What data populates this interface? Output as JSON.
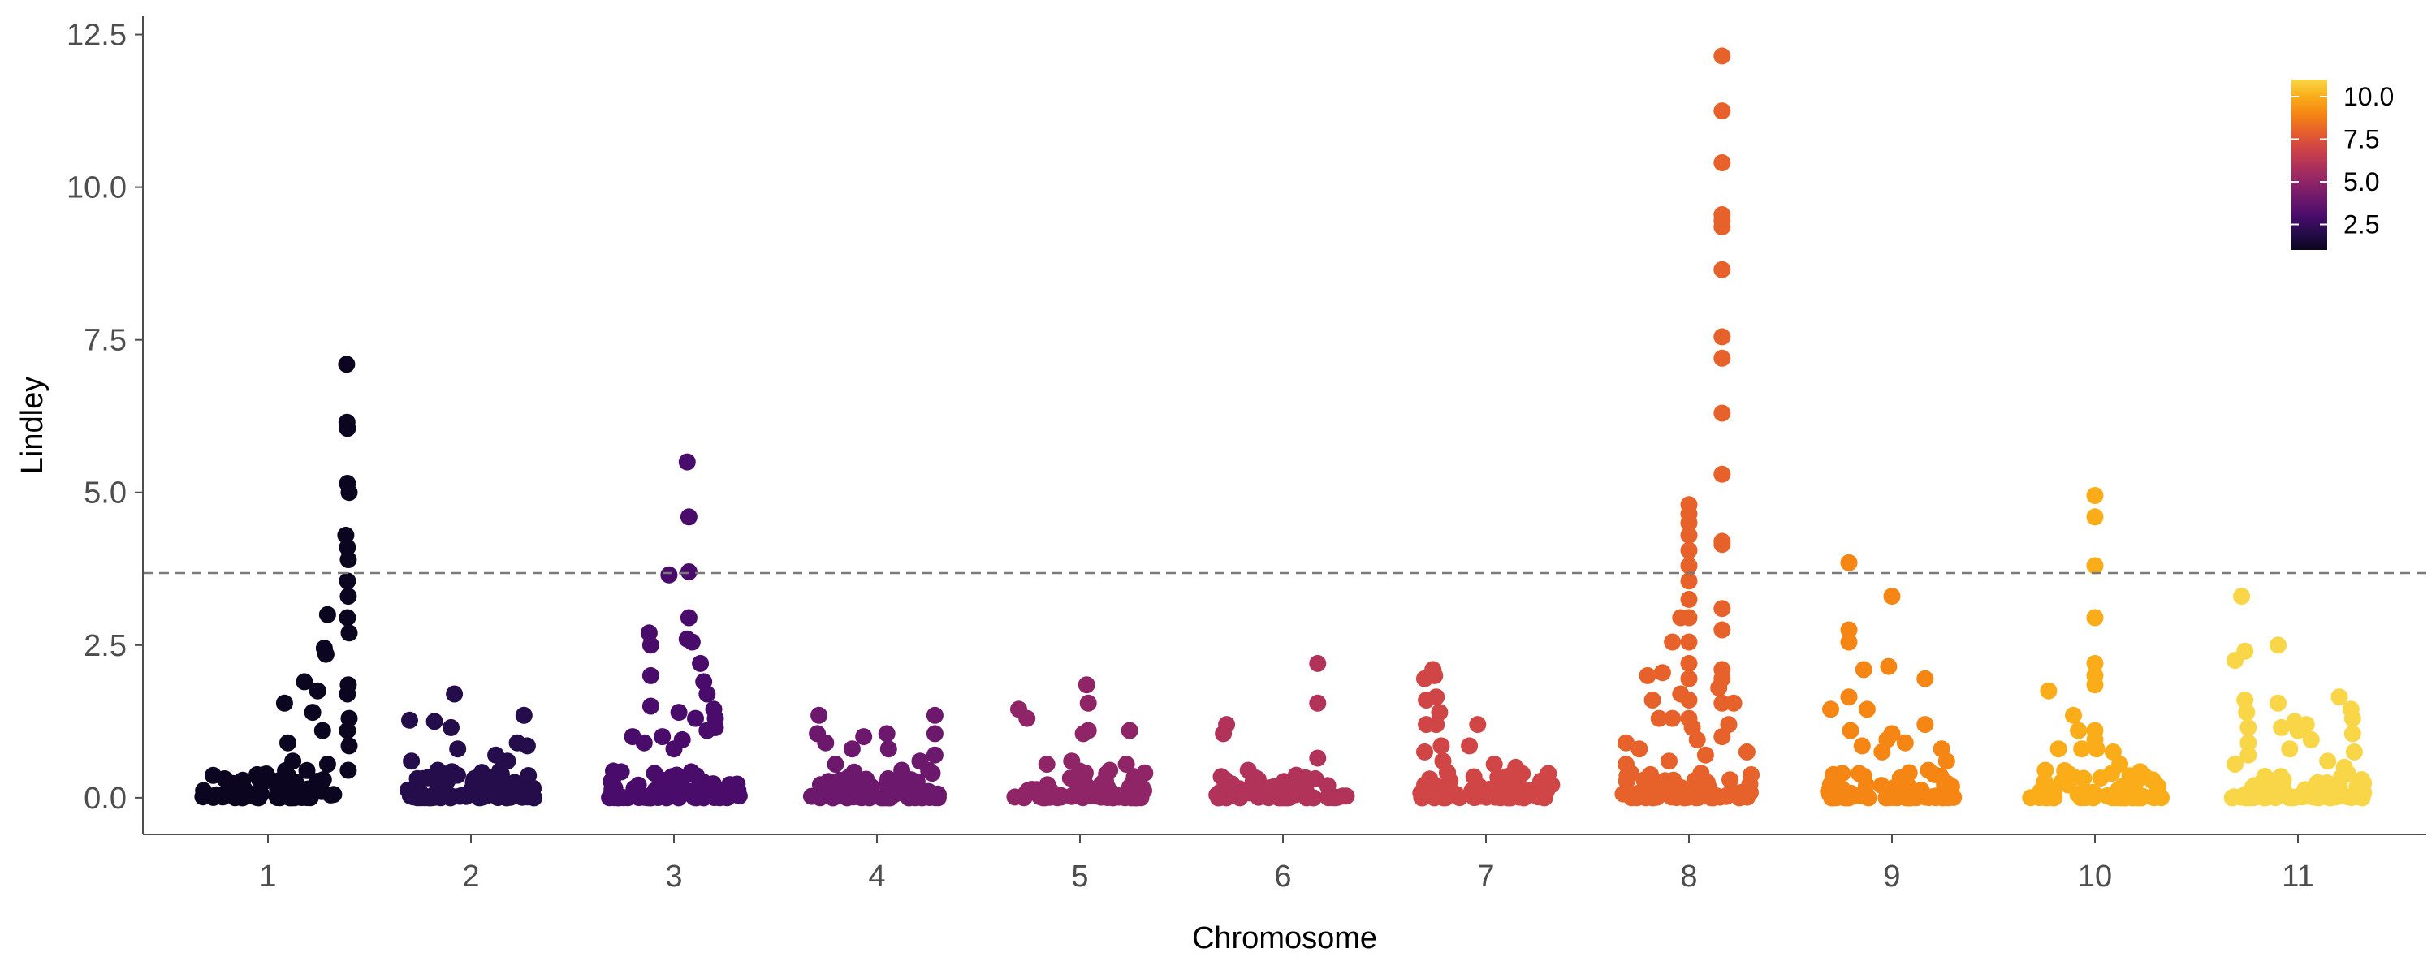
{
  "chart_data": {
    "type": "scatter",
    "title": "",
    "xlabel": "Chromosome",
    "ylabel": "Lindley",
    "categories": [
      "1",
      "2",
      "3",
      "4",
      "5",
      "6",
      "7",
      "8",
      "9",
      "10",
      "11"
    ],
    "ylim": [
      -0.6,
      12.8
    ],
    "yticks": [
      0.0,
      2.5,
      5.0,
      7.5,
      10.0,
      12.5
    ],
    "ytick_labels": [
      "0.0",
      "2.5",
      "5.0",
      "7.5",
      "10.0",
      "12.5"
    ],
    "threshold": 3.68,
    "threshold_style": "dashed",
    "grid": false,
    "legend": {
      "type": "colorbar",
      "position": "top-right",
      "range": [
        1,
        11
      ],
      "ticks": [
        2.5,
        5.0,
        7.5,
        10.0
      ],
      "tick_labels": [
        "2.5",
        "5.0",
        "7.5",
        "10.0"
      ]
    },
    "palette": [
      "#000004",
      "#1b0c41",
      "#4a0c6b",
      "#781c6d",
      "#a52c60",
      "#cf4446",
      "#ed6925",
      "#fb9b06",
      "#f7d13d",
      "#fcffa4"
    ],
    "series": [
      {
        "chromosome": 1,
        "color_value": 1,
        "points": [
          [
            0.1,
            1.55
          ],
          [
            0.12,
            0.9
          ],
          [
            0.15,
            0.6
          ],
          [
            0.22,
            1.9
          ],
          [
            0.27,
            1.4
          ],
          [
            0.3,
            1.75
          ],
          [
            0.33,
            1.1
          ],
          [
            0.34,
            2.45
          ],
          [
            0.35,
            2.35
          ],
          [
            0.36,
            3.0
          ],
          [
            0.36,
            0.55
          ],
          [
            0.47,
            4.3
          ],
          [
            0.475,
            7.1
          ],
          [
            0.477,
            6.15
          ],
          [
            0.48,
            6.05
          ],
          [
            0.48,
            5.15
          ],
          [
            0.49,
            5.0
          ],
          [
            0.48,
            4.1
          ],
          [
            0.485,
            3.9
          ],
          [
            0.48,
            3.55
          ],
          [
            0.485,
            3.3
          ],
          [
            0.48,
            2.95
          ],
          [
            0.49,
            2.7
          ],
          [
            0.485,
            1.85
          ],
          [
            0.48,
            1.7
          ],
          [
            0.49,
            1.3
          ],
          [
            0.48,
            1.1
          ],
          [
            0.49,
            0.85
          ],
          [
            0.485,
            0.45
          ]
        ]
      },
      {
        "chromosome": 2,
        "color_value": 2,
        "points": [
          [
            -0.37,
            1.27
          ],
          [
            -0.36,
            0.6
          ],
          [
            -0.22,
            1.25
          ],
          [
            -0.1,
            1.7
          ],
          [
            -0.12,
            1.15
          ],
          [
            -0.08,
            0.8
          ],
          [
            0.15,
            0.7
          ],
          [
            0.22,
            0.6
          ],
          [
            0.28,
            0.9
          ],
          [
            0.32,
            1.35
          ],
          [
            0.34,
            0.85
          ],
          [
            -0.2,
            0.45
          ],
          [
            0.05,
            0.35
          ]
        ]
      },
      {
        "chromosome": 3,
        "color_value": 3,
        "points": [
          [
            -0.37,
            0.3
          ],
          [
            -0.25,
            1.0
          ],
          [
            -0.15,
            2.7
          ],
          [
            -0.14,
            2.5
          ],
          [
            -0.14,
            2.0
          ],
          [
            -0.14,
            1.5
          ],
          [
            -0.03,
            3.65
          ],
          [
            0.08,
            5.5
          ],
          [
            0.09,
            4.6
          ],
          [
            0.09,
            3.7
          ],
          [
            0.09,
            2.95
          ],
          [
            0.08,
            2.6
          ],
          [
            0.11,
            2.55
          ],
          [
            0.16,
            2.2
          ],
          [
            0.18,
            1.9
          ],
          [
            0.2,
            1.7
          ],
          [
            0.24,
            1.45
          ],
          [
            0.25,
            1.3
          ],
          [
            0.25,
            1.15
          ],
          [
            0.03,
            1.4
          ],
          [
            -0.07,
            1.0
          ],
          [
            0.13,
            1.3
          ],
          [
            0.2,
            1.1
          ],
          [
            -0.18,
            0.9
          ],
          [
            0.0,
            0.8
          ],
          [
            0.05,
            0.95
          ]
        ]
      },
      {
        "chromosome": 4,
        "color_value": 4,
        "points": [
          [
            -0.35,
            1.35
          ],
          [
            -0.36,
            1.05
          ],
          [
            -0.31,
            0.9
          ],
          [
            -0.15,
            0.8
          ],
          [
            -0.08,
            1.0
          ],
          [
            0.06,
            1.05
          ],
          [
            0.07,
            0.8
          ],
          [
            0.26,
            0.6
          ],
          [
            0.35,
            1.35
          ],
          [
            0.35,
            1.05
          ],
          [
            0.35,
            0.7
          ],
          [
            -0.25,
            0.55
          ],
          [
            0.15,
            0.45
          ]
        ]
      },
      {
        "chromosome": 5,
        "color_value": 5,
        "points": [
          [
            -0.37,
            1.45
          ],
          [
            -0.32,
            1.3
          ],
          [
            -0.2,
            0.55
          ],
          [
            -0.05,
            0.6
          ],
          [
            0.02,
            1.05
          ],
          [
            0.04,
            1.85
          ],
          [
            0.05,
            1.55
          ],
          [
            0.05,
            1.1
          ],
          [
            0.18,
            0.45
          ],
          [
            0.3,
            1.1
          ],
          [
            0.28,
            0.55
          ]
        ]
      },
      {
        "chromosome": 6,
        "color_value": 6,
        "points": [
          [
            -0.36,
            1.05
          ],
          [
            -0.34,
            1.2
          ],
          [
            -0.21,
            0.45
          ],
          [
            -0.15,
            0.3
          ],
          [
            0.21,
            2.2
          ],
          [
            0.21,
            1.55
          ],
          [
            0.21,
            0.65
          ],
          [
            0.27,
            0.2
          ]
        ]
      },
      {
        "chromosome": 7,
        "color_value": 7,
        "points": [
          [
            -0.37,
            1.95
          ],
          [
            -0.36,
            1.6
          ],
          [
            -0.36,
            1.2
          ],
          [
            -0.37,
            0.75
          ],
          [
            -0.32,
            2.1
          ],
          [
            -0.31,
            2.0
          ],
          [
            -0.3,
            1.65
          ],
          [
            -0.28,
            1.4
          ],
          [
            -0.27,
            0.85
          ],
          [
            -0.26,
            0.6
          ],
          [
            -0.3,
            1.2
          ],
          [
            -0.1,
            0.85
          ],
          [
            -0.05,
            1.2
          ],
          [
            0.05,
            0.55
          ],
          [
            0.18,
            0.5
          ],
          [
            0.2,
            0.4
          ]
        ]
      },
      {
        "chromosome": 8,
        "color_value": 8,
        "points": [
          [
            -0.38,
            0.9
          ],
          [
            -0.38,
            0.55
          ],
          [
            -0.35,
            0.4
          ],
          [
            -0.3,
            0.8
          ],
          [
            -0.25,
            2.0
          ],
          [
            -0.22,
            1.6
          ],
          [
            -0.18,
            1.3
          ],
          [
            -0.16,
            2.05
          ],
          [
            -0.1,
            2.55
          ],
          [
            -0.1,
            1.3
          ],
          [
            -0.05,
            2.95
          ],
          [
            -0.05,
            1.7
          ],
          [
            0.0,
            4.8
          ],
          [
            0.0,
            4.65
          ],
          [
            0.0,
            4.5
          ],
          [
            0.0,
            4.3
          ],
          [
            0.0,
            4.05
          ],
          [
            0.0,
            3.8
          ],
          [
            0.0,
            3.55
          ],
          [
            0.0,
            3.25
          ],
          [
            0.0,
            2.95
          ],
          [
            0.0,
            2.55
          ],
          [
            0.0,
            2.2
          ],
          [
            0.0,
            1.95
          ],
          [
            0.0,
            1.6
          ],
          [
            0.0,
            1.3
          ],
          [
            0.02,
            1.15
          ],
          [
            0.05,
            0.95
          ],
          [
            0.2,
            12.15
          ],
          [
            0.2,
            11.25
          ],
          [
            0.2,
            10.4
          ],
          [
            0.2,
            9.55
          ],
          [
            0.2,
            9.45
          ],
          [
            0.2,
            9.35
          ],
          [
            0.2,
            8.65
          ],
          [
            0.2,
            7.55
          ],
          [
            0.2,
            7.2
          ],
          [
            0.2,
            6.3
          ],
          [
            0.2,
            5.3
          ],
          [
            0.2,
            4.2
          ],
          [
            0.2,
            4.15
          ],
          [
            0.2,
            3.1
          ],
          [
            0.2,
            2.75
          ],
          [
            0.2,
            2.1
          ],
          [
            0.2,
            1.95
          ],
          [
            0.2,
            1.55
          ],
          [
            0.2,
            1.0
          ],
          [
            0.18,
            1.8
          ],
          [
            0.24,
            1.2
          ],
          [
            0.27,
            1.55
          ],
          [
            0.35,
            0.75
          ],
          [
            0.1,
            0.7
          ],
          [
            -0.12,
            0.6
          ]
        ]
      },
      {
        "chromosome": 9,
        "color_value": 9,
        "points": [
          [
            -0.37,
            1.45
          ],
          [
            -0.3,
            0.4
          ],
          [
            -0.26,
            3.85
          ],
          [
            -0.26,
            2.75
          ],
          [
            -0.26,
            2.55
          ],
          [
            -0.26,
            1.65
          ],
          [
            -0.25,
            1.1
          ],
          [
            -0.18,
            0.85
          ],
          [
            -0.17,
            2.1
          ],
          [
            -0.15,
            1.45
          ],
          [
            -0.06,
            0.75
          ],
          [
            -0.03,
            0.95
          ],
          [
            -0.02,
            2.15
          ],
          [
            0.0,
            3.3
          ],
          [
            0.0,
            1.05
          ],
          [
            0.08,
            0.9
          ],
          [
            0.2,
            1.95
          ],
          [
            0.2,
            1.2
          ],
          [
            0.22,
            0.45
          ],
          [
            0.3,
            0.8
          ],
          [
            0.33,
            0.6
          ]
        ]
      },
      {
        "chromosome": 10,
        "color_value": 10,
        "points": [
          [
            -0.3,
            0.45
          ],
          [
            -0.28,
            1.75
          ],
          [
            -0.22,
            0.8
          ],
          [
            -0.13,
            1.35
          ],
          [
            -0.1,
            1.1
          ],
          [
            -0.08,
            0.8
          ],
          [
            0.01,
            0.8
          ],
          [
            0.0,
            4.95
          ],
          [
            0.0,
            4.6
          ],
          [
            0.0,
            3.8
          ],
          [
            0.0,
            2.95
          ],
          [
            0.0,
            2.2
          ],
          [
            0.0,
            2.0
          ],
          [
            0.0,
            1.85
          ],
          [
            0.0,
            1.1
          ],
          [
            0.0,
            0.95
          ],
          [
            0.11,
            0.75
          ],
          [
            0.15,
            0.55
          ],
          [
            0.3,
            0.35
          ]
        ]
      },
      {
        "chromosome": 11,
        "color_value": 11,
        "points": [
          [
            -0.38,
            2.25
          ],
          [
            -0.38,
            0.55
          ],
          [
            -0.34,
            3.3
          ],
          [
            -0.32,
            2.4
          ],
          [
            -0.32,
            1.6
          ],
          [
            -0.31,
            1.4
          ],
          [
            -0.3,
            1.15
          ],
          [
            -0.3,
            0.9
          ],
          [
            -0.3,
            0.7
          ],
          [
            -0.2,
            0.35
          ],
          [
            -0.12,
            2.5
          ],
          [
            -0.12,
            1.55
          ],
          [
            -0.1,
            1.15
          ],
          [
            -0.05,
            0.8
          ],
          [
            -0.02,
            1.25
          ],
          [
            0.0,
            1.1
          ],
          [
            0.05,
            1.2
          ],
          [
            0.08,
            0.95
          ],
          [
            0.18,
            0.6
          ],
          [
            0.25,
            1.65
          ],
          [
            0.28,
            0.5
          ],
          [
            0.32,
            1.45
          ],
          [
            0.33,
            1.3
          ],
          [
            0.33,
            1.05
          ],
          [
            0.34,
            0.75
          ],
          [
            0.3,
            0.4
          ]
        ]
      }
    ]
  }
}
